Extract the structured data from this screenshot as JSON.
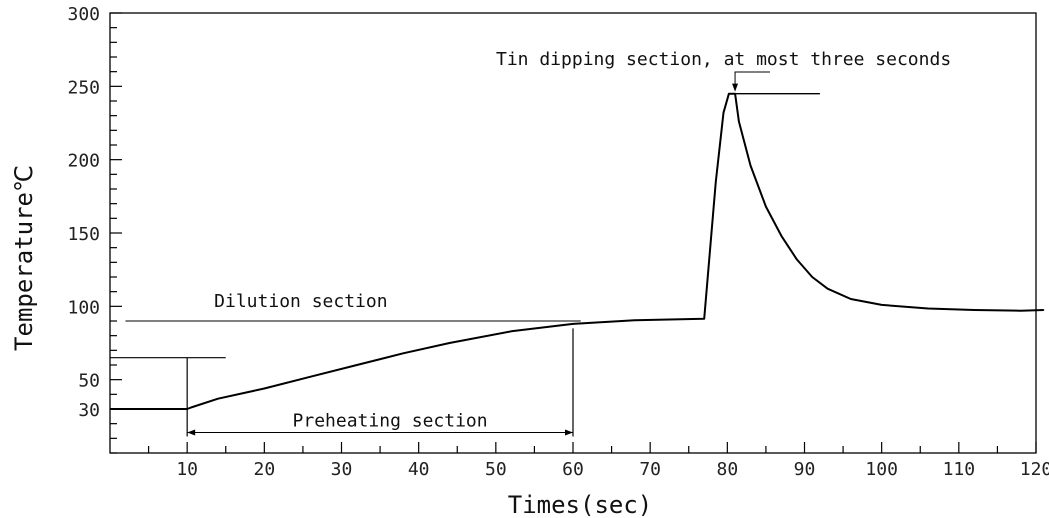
{
  "chart_data": {
    "type": "line",
    "title": "",
    "xlabel": "Times(sec)",
    "ylabel": "Temperature℃",
    "xlim": [
      0,
      120
    ],
    "ylim": [
      0,
      300
    ],
    "x_ticks": [
      10,
      20,
      30,
      40,
      50,
      60,
      70,
      80,
      90,
      100,
      110,
      120
    ],
    "y_ticks": [
      30,
      50,
      100,
      150,
      200,
      250,
      300
    ],
    "grid": false,
    "series": [
      {
        "points": [
          [
            0,
            30
          ],
          [
            10,
            30
          ],
          [
            10.5,
            31
          ],
          [
            14,
            37
          ],
          [
            20,
            44
          ],
          [
            26,
            52
          ],
          [
            32,
            60
          ],
          [
            38,
            68
          ],
          [
            44,
            75
          ],
          [
            52,
            83
          ],
          [
            60,
            88
          ],
          [
            68,
            90.5
          ],
          [
            77,
            91.5
          ],
          [
            78.5,
            185
          ],
          [
            79.5,
            232
          ],
          [
            80.2,
            245
          ],
          [
            81,
            245
          ],
          [
            81.5,
            226
          ],
          [
            83,
            196
          ],
          [
            85,
            168
          ],
          [
            87,
            148
          ],
          [
            89,
            132
          ],
          [
            91,
            120
          ],
          [
            93,
            112
          ],
          [
            96,
            105
          ],
          [
            100,
            101
          ],
          [
            106,
            98.5
          ],
          [
            112,
            97.5
          ],
          [
            118,
            97
          ],
          [
            121,
            97.5
          ]
        ]
      }
    ],
    "annotations": {
      "dilution": {
        "text": "Dilution section",
        "y": 90,
        "x_start": 2,
        "x_end": 61
      },
      "preheating": {
        "text": "Preheating section",
        "x_start": 10,
        "x_end": 60,
        "y": 14,
        "vline_top_left": 65,
        "vline_top_right": 85
      },
      "preheat_marker": {
        "y": 65,
        "x_start": 0,
        "x_end": 15
      },
      "tin_dipping": {
        "text": "Tin dipping section, at most three seconds",
        "hold_y": 245,
        "hold_x_start": 80.5,
        "hold_x_end": 92,
        "arrow_x": 81
      }
    }
  }
}
